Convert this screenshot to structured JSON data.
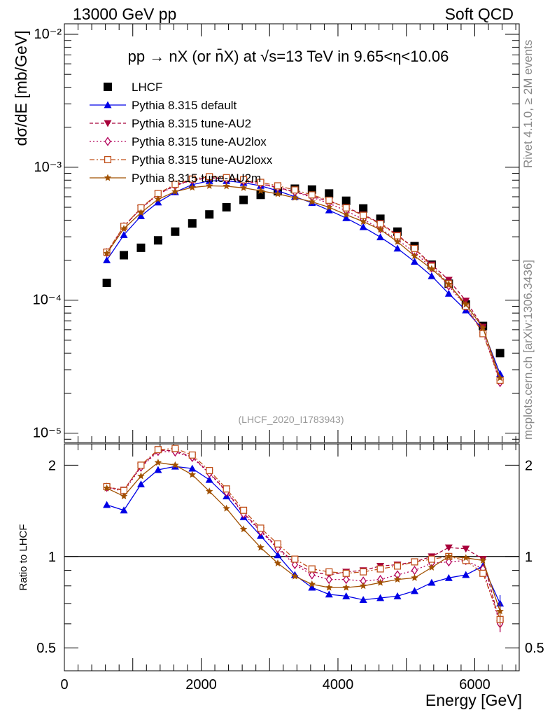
{
  "header": {
    "left": "13000 GeV pp",
    "right": "Soft QCD"
  },
  "side_labels": {
    "rivet": "Rivet 4.1.0, ≥ 2M events",
    "mcplots": "mcplots.cern.ch [arXiv:1306.3436]"
  },
  "colors": {
    "lhcf": "#000000",
    "default": "#0000e6",
    "au2": "#a8003a",
    "au2lox": "#b3005a",
    "au2loxx": "#c0501a",
    "au2m": "#a05000"
  },
  "chart_data": [
    {
      "type": "scatter",
      "panel": "main",
      "title": "pp → nX (or n̄X) at √s=13 TeV in 9.65<η<10.06",
      "watermark": "(LHCF_2020_I1783943)",
      "ylabel": "dσ/dE [mb/GeV]",
      "yscale": "log",
      "ylim": [
        8.5e-06,
        0.012
      ],
      "xlim": [
        0,
        6650
      ],
      "ytick_labels": [
        "10⁻⁵",
        "10⁻⁴",
        "10⁻³",
        "10⁻²"
      ],
      "x": [
        620,
        870,
        1120,
        1370,
        1620,
        1870,
        2120,
        2370,
        2620,
        2870,
        3120,
        3370,
        3620,
        3870,
        4120,
        4370,
        4620,
        4870,
        5120,
        5370,
        5620,
        5870,
        6120,
        6370
      ],
      "series": [
        {
          "name": "LHCF",
          "style": "data",
          "marker": "square",
          "values": [
            0.000135,
            0.000218,
            0.000248,
            0.000282,
            0.000328,
            0.000378,
            0.000442,
            0.0005,
            0.000568,
            0.00062,
            0.00066,
            0.00069,
            0.00068,
            0.000635,
            0.00056,
            0.00049,
            0.00041,
            0.000328,
            0.000255,
            0.000185,
            0.000133,
            9.3e-05,
            6.4e-05,
            4e-05
          ]
        },
        {
          "name": "Pythia 8.315 default",
          "style": "solid",
          "marker": "triangle-up",
          "values": [
            0.0002,
            0.00031,
            0.00043,
            0.000545,
            0.00065,
            0.00074,
            0.00079,
            0.00079,
            0.000765,
            0.000725,
            0.000665,
            0.0006,
            0.00054,
            0.000475,
            0.000415,
            0.000355,
            0.000298,
            0.000245,
            0.000195,
            0.000152,
            0.000112,
            8.4e-05,
            6e-05,
            2.8e-05
          ]
        },
        {
          "name": "Pythia 8.315 tune-AU2",
          "style": "dashed",
          "marker": "triangle-down",
          "values": [
            0.000228,
            0.00036,
            0.00049,
            0.00063,
            0.00073,
            0.000805,
            0.000835,
            0.00082,
            0.00079,
            0.000755,
            0.000705,
            0.000655,
            0.000605,
            0.000555,
            0.0005,
            0.00044,
            0.00038,
            0.00031,
            0.000245,
            0.000185,
            0.000142,
            9.9e-05,
            6.3e-05,
            2.4e-05
          ]
        },
        {
          "name": "Pythia 8.315 tune-AU2lox",
          "style": "dotted",
          "marker": "diamond",
          "values": [
            0.000228,
            0.000358,
            0.000488,
            0.000625,
            0.000725,
            0.0008,
            0.00083,
            0.000815,
            0.000785,
            0.00075,
            0.0007,
            0.00065,
            0.000595,
            0.000535,
            0.00047,
            0.000405,
            0.000345,
            0.000285,
            0.00023,
            0.000175,
            0.000128,
            9e-05,
            5.8e-05,
            2.4e-05
          ]
        },
        {
          "name": "Pythia 8.315 tune-AU2loxx",
          "style": "dashdot",
          "marker": "square-open",
          "values": [
            0.00023,
            0.00036,
            0.000495,
            0.000635,
            0.000745,
            0.000815,
            0.00085,
            0.000835,
            0.000805,
            0.00077,
            0.000725,
            0.000675,
            0.00062,
            0.000565,
            0.000495,
            0.000435,
            0.000375,
            0.000305,
            0.000245,
            0.00018,
            0.000133,
            9e-05,
            5.6e-05,
            2.5e-05
          ]
        },
        {
          "name": "Pythia 8.315 tune-AU2m",
          "style": "solid",
          "marker": "star",
          "values": [
            0.000225,
            0.000345,
            0.000455,
            0.000575,
            0.000655,
            0.000705,
            0.000725,
            0.00072,
            0.0007,
            0.000665,
            0.00063,
            0.00059,
            0.00055,
            0.0005,
            0.00044,
            0.00039,
            0.00034,
            0.000275,
            0.000215,
            0.000172,
            0.000132,
            9.3e-05,
            6.2e-05,
            2.6e-05
          ]
        }
      ]
    },
    {
      "type": "line",
      "panel": "ratio",
      "ylabel": "Ratio to LHCF",
      "xlabel": "Energy [GeV]",
      "yscale": "log",
      "ylim": [
        0.42,
        2.35
      ],
      "xlim": [
        0,
        6650
      ],
      "xtick_labels": [
        "0",
        "2000",
        "4000",
        "6000"
      ],
      "xtick_values": [
        0,
        2000,
        4000,
        6000
      ],
      "ytick_labels": [
        "0.5",
        "1",
        "2"
      ],
      "ytick_values": [
        0.5,
        1,
        2
      ],
      "reference_line": 1,
      "x": [
        620,
        870,
        1120,
        1370,
        1620,
        1870,
        2120,
        2370,
        2620,
        2870,
        3120,
        3370,
        3620,
        3870,
        4120,
        4370,
        4620,
        4870,
        5120,
        5370,
        5620,
        5870,
        6120,
        6370
      ],
      "series": [
        {
          "name": "Pythia 8.315 default",
          "values": [
            1.48,
            1.42,
            1.73,
            1.93,
            1.98,
            1.95,
            1.79,
            1.58,
            1.35,
            1.17,
            1.01,
            0.87,
            0.79,
            0.75,
            0.74,
            0.72,
            0.73,
            0.74,
            0.77,
            0.82,
            0.85,
            0.87,
            0.93,
            0.7
          ]
        },
        {
          "name": "Pythia 8.315 tune-AU2",
          "values": [
            1.69,
            1.66,
            1.98,
            2.24,
            2.23,
            2.13,
            1.89,
            1.64,
            1.39,
            1.22,
            1.07,
            0.95,
            0.89,
            0.87,
            0.89,
            0.9,
            0.93,
            0.94,
            0.96,
            1.0,
            1.07,
            1.06,
            0.98,
            0.6
          ]
        },
        {
          "name": "Pythia 8.315 tune-AU2lox",
          "values": [
            1.69,
            1.64,
            1.97,
            2.22,
            2.21,
            2.12,
            1.88,
            1.63,
            1.38,
            1.21,
            1.06,
            0.94,
            0.87,
            0.84,
            0.84,
            0.83,
            0.84,
            0.87,
            0.9,
            0.95,
            0.96,
            0.97,
            0.91,
            0.6
          ]
        },
        {
          "name": "Pythia 8.315 tune-AU2loxx",
          "values": [
            1.7,
            1.65,
            2.0,
            2.25,
            2.27,
            2.16,
            1.92,
            1.67,
            1.42,
            1.24,
            1.1,
            0.98,
            0.91,
            0.89,
            0.88,
            0.89,
            0.91,
            0.93,
            0.96,
            0.98,
            1.0,
            0.97,
            0.88,
            0.62
          ]
        },
        {
          "name": "Pythia 8.315 tune-AU2m",
          "values": [
            1.68,
            1.58,
            1.84,
            2.04,
            2.0,
            1.86,
            1.64,
            1.44,
            1.23,
            1.07,
            0.95,
            0.86,
            0.81,
            0.79,
            0.79,
            0.8,
            0.82,
            0.84,
            0.85,
            0.92,
            1.0,
            0.99,
            0.97,
            0.66
          ]
        }
      ]
    }
  ]
}
